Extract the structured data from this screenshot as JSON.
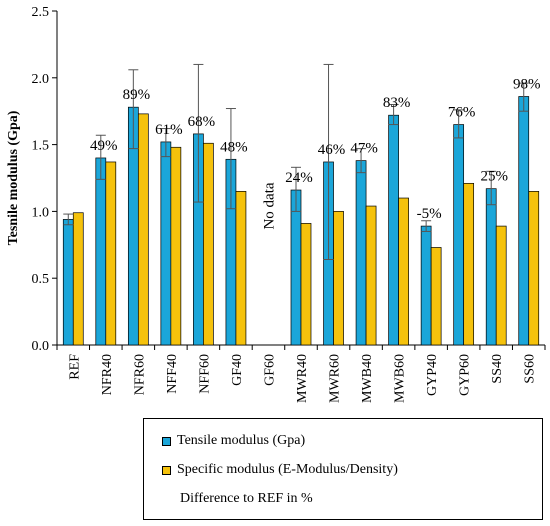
{
  "chart_data": {
    "type": "bar",
    "ylabel": "Tesnile modulus (Gpa)",
    "xlabel": "",
    "ylim": [
      0,
      2.5
    ],
    "yticks": [
      "0.0",
      "0.5",
      "1.0",
      "1.5",
      "2.0",
      "2.5"
    ],
    "ytick_values": [
      0,
      0.5,
      1.0,
      1.5,
      2.0,
      2.5
    ],
    "grid": false,
    "legend_position": "bottom",
    "categories": [
      "REF",
      "NFR40",
      "NFR60",
      "NFF40",
      "NFF60",
      "GF40",
      "GF60",
      "MWR40",
      "MWR60",
      "MWB40",
      "MWB60",
      "GYP40",
      "GYP60",
      "SS40",
      "SS60"
    ],
    "series": [
      {
        "name": "Tensile modulus (Gpa)",
        "color": "#1ba6d9",
        "values": [
          0.94,
          1.4,
          1.78,
          1.52,
          1.58,
          1.39,
          null,
          1.16,
          1.37,
          1.38,
          1.72,
          0.89,
          1.65,
          1.17,
          1.86
        ],
        "error_low": [
          0.9,
          1.24,
          1.47,
          1.41,
          1.07,
          1.02,
          null,
          1.0,
          0.64,
          1.29,
          1.65,
          0.85,
          1.55,
          1.05,
          1.75
        ],
        "error_high": [
          0.98,
          1.57,
          2.06,
          1.62,
          2.1,
          1.77,
          null,
          1.33,
          2.1,
          1.47,
          1.8,
          0.93,
          1.76,
          1.3,
          1.96
        ]
      },
      {
        "name": "Specific modulus (E-Modulus/Density)",
        "color": "#f5c20c",
        "values": [
          0.99,
          1.37,
          1.73,
          1.48,
          1.51,
          1.15,
          null,
          0.91,
          1.0,
          1.04,
          1.1,
          0.73,
          1.21,
          0.89,
          1.15
        ]
      }
    ],
    "annotations": [
      "",
      "49%",
      "89%",
      "61%",
      "68%",
      "48%",
      "",
      "24%",
      "46%",
      "47%",
      "83%",
      "-5%",
      "76%",
      "25%",
      "98%"
    ],
    "no_data_label": "No data",
    "difference_label": "Difference to REF in %"
  }
}
